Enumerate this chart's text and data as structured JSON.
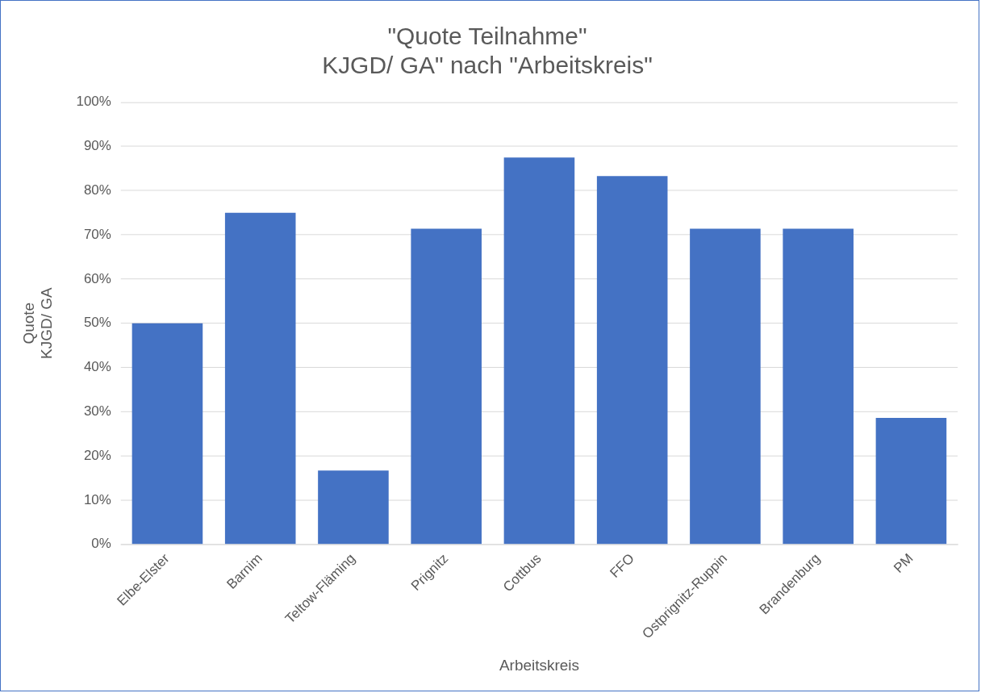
{
  "chart_data": {
    "type": "bar",
    "title": "\"Quote Teilnahme\"\nKJGD/ GA\" nach \"Arbeitskreis\"",
    "xlabel": "Arbeitskreis",
    "ylabel": "Quote\nKJGD/ GA",
    "categories": [
      "Elbe-Elster",
      "Barnim",
      "Teltow-Fläming",
      "Prignitz",
      "Cottbus",
      "FFO",
      "Ostprignitz-Ruppin",
      "Brandenburg",
      "PM"
    ],
    "values": [
      50,
      75,
      16.7,
      71.4,
      87.5,
      83.3,
      71.4,
      71.4,
      28.6
    ],
    "color": "#4472c4",
    "ylim": [
      0,
      100
    ],
    "yticks": [
      {
        "value": 0,
        "label": "0%"
      },
      {
        "value": 10,
        "label": "10%"
      },
      {
        "value": 20,
        "label": "20%"
      },
      {
        "value": 30,
        "label": "30%"
      },
      {
        "value": 40,
        "label": "40%"
      },
      {
        "value": 50,
        "label": "50%"
      },
      {
        "value": 60,
        "label": "60%"
      },
      {
        "value": 70,
        "label": "70%"
      },
      {
        "value": 80,
        "label": "80%"
      },
      {
        "value": 90,
        "label": "90%"
      },
      {
        "value": 100,
        "label": "100%"
      }
    ],
    "grid": "y",
    "legend": false
  }
}
